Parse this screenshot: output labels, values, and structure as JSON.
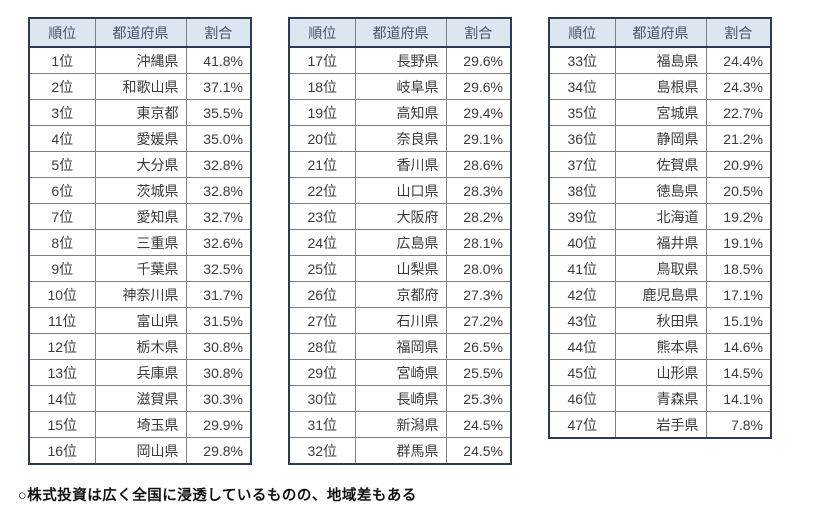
{
  "columns": {
    "rank": "順位",
    "prefecture": "都道府県",
    "ratio": "割合"
  },
  "tables": [
    {
      "rows": [
        {
          "rank": "1位",
          "pref": "沖縄県",
          "pct": "41.8%"
        },
        {
          "rank": "2位",
          "pref": "和歌山県",
          "pct": "37.1%"
        },
        {
          "rank": "3位",
          "pref": "東京都",
          "pct": "35.5%"
        },
        {
          "rank": "4位",
          "pref": "愛媛県",
          "pct": "35.0%"
        },
        {
          "rank": "5位",
          "pref": "大分県",
          "pct": "32.8%"
        },
        {
          "rank": "6位",
          "pref": "茨城県",
          "pct": "32.8%"
        },
        {
          "rank": "7位",
          "pref": "愛知県",
          "pct": "32.7%"
        },
        {
          "rank": "8位",
          "pref": "三重県",
          "pct": "32.6%"
        },
        {
          "rank": "9位",
          "pref": "千葉県",
          "pct": "32.5%"
        },
        {
          "rank": "10位",
          "pref": "神奈川県",
          "pct": "31.7%"
        },
        {
          "rank": "11位",
          "pref": "富山県",
          "pct": "31.5%"
        },
        {
          "rank": "12位",
          "pref": "栃木県",
          "pct": "30.8%"
        },
        {
          "rank": "13位",
          "pref": "兵庫県",
          "pct": "30.8%"
        },
        {
          "rank": "14位",
          "pref": "滋賀県",
          "pct": "30.3%"
        },
        {
          "rank": "15位",
          "pref": "埼玉県",
          "pct": "29.9%"
        },
        {
          "rank": "16位",
          "pref": "岡山県",
          "pct": "29.8%"
        }
      ]
    },
    {
      "rows": [
        {
          "rank": "17位",
          "pref": "長野県",
          "pct": "29.6%"
        },
        {
          "rank": "18位",
          "pref": "岐阜県",
          "pct": "29.6%"
        },
        {
          "rank": "19位",
          "pref": "高知県",
          "pct": "29.4%"
        },
        {
          "rank": "20位",
          "pref": "奈良県",
          "pct": "29.1%"
        },
        {
          "rank": "21位",
          "pref": "香川県",
          "pct": "28.6%"
        },
        {
          "rank": "22位",
          "pref": "山口県",
          "pct": "28.3%"
        },
        {
          "rank": "23位",
          "pref": "大阪府",
          "pct": "28.2%"
        },
        {
          "rank": "24位",
          "pref": "広島県",
          "pct": "28.1%"
        },
        {
          "rank": "25位",
          "pref": "山梨県",
          "pct": "28.0%"
        },
        {
          "rank": "26位",
          "pref": "京都府",
          "pct": "27.3%"
        },
        {
          "rank": "27位",
          "pref": "石川県",
          "pct": "27.2%"
        },
        {
          "rank": "28位",
          "pref": "福岡県",
          "pct": "26.5%"
        },
        {
          "rank": "29位",
          "pref": "宮崎県",
          "pct": "25.5%"
        },
        {
          "rank": "30位",
          "pref": "長崎県",
          "pct": "25.3%"
        },
        {
          "rank": "31位",
          "pref": "新潟県",
          "pct": "24.5%"
        },
        {
          "rank": "32位",
          "pref": "群馬県",
          "pct": "24.5%"
        }
      ]
    },
    {
      "rows": [
        {
          "rank": "33位",
          "pref": "福島県",
          "pct": "24.4%"
        },
        {
          "rank": "34位",
          "pref": "島根県",
          "pct": "24.3%"
        },
        {
          "rank": "35位",
          "pref": "宮城県",
          "pct": "22.7%"
        },
        {
          "rank": "36位",
          "pref": "静岡県",
          "pct": "21.2%"
        },
        {
          "rank": "37位",
          "pref": "佐賀県",
          "pct": "20.9%"
        },
        {
          "rank": "38位",
          "pref": "徳島県",
          "pct": "20.5%"
        },
        {
          "rank": "39位",
          "pref": "北海道",
          "pct": "19.2%"
        },
        {
          "rank": "40位",
          "pref": "福井県",
          "pct": "19.1%"
        },
        {
          "rank": "41位",
          "pref": "鳥取県",
          "pct": "18.5%"
        },
        {
          "rank": "42位",
          "pref": "鹿児島県",
          "pct": "17.1%"
        },
        {
          "rank": "43位",
          "pref": "秋田県",
          "pct": "15.1%"
        },
        {
          "rank": "44位",
          "pref": "熊本県",
          "pct": "14.6%"
        },
        {
          "rank": "45位",
          "pref": "山形県",
          "pct": "14.5%"
        },
        {
          "rank": "46位",
          "pref": "青森県",
          "pct": "14.1%"
        },
        {
          "rank": "47位",
          "pref": "岩手県",
          "pct": "7.8%"
        }
      ]
    }
  ],
  "footer": {
    "note": "○株式投資は広く全国に浸透しているものの、地域差もある"
  },
  "colors": {
    "header_bg": "#dce6f1",
    "header_text": "#44546a",
    "border_dark": "#2b3a55",
    "border_light": "#7f7f7f",
    "body_text": "#3b3b3b"
  }
}
